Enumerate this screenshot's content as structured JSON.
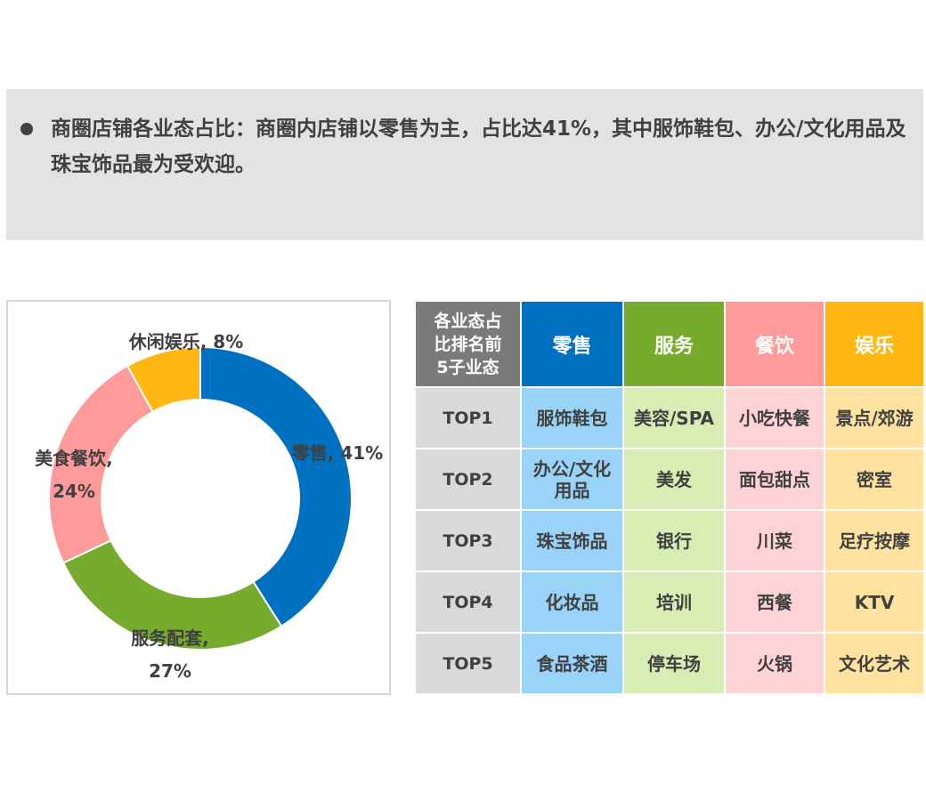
{
  "note": {
    "text": "商圈店铺各业态占比：商圈内店铺以零售为主，占比达41%，其中服饰鞋包、办公/文化用品及珠宝饰品最为受欢迎。"
  },
  "chart_data": {
    "type": "pie",
    "donut": true,
    "categories": [
      "零售",
      "服务配套",
      "美食餐饮",
      "休闲娱乐"
    ],
    "values": [
      41,
      27,
      24,
      8
    ],
    "colors": [
      "#0070c0",
      "#77ab2e",
      "#ff9a9a",
      "#ffb812"
    ],
    "label_lines": [
      [
        "零售, 41%"
      ],
      [
        "服务配套,",
        "27%"
      ],
      [
        "美食餐饮,",
        "24%"
      ],
      [
        "休闲娱乐, 8%"
      ]
    ],
    "start": "12 o'clock",
    "direction": "clockwise"
  },
  "table": {
    "corner_label": "各业态占比排名前5子业态",
    "columns": [
      {
        "name": "零售",
        "header_color": "#0070c0",
        "cell_color": "#99d3f7"
      },
      {
        "name": "服务",
        "header_color": "#77ab2e",
        "cell_color": "#d8edb3"
      },
      {
        "name": "餐饮",
        "header_color": "#ff9a9a",
        "cell_color": "#ffd3d6"
      },
      {
        "name": "娱乐",
        "header_color": "#ffb812",
        "cell_color": "#ffe1a0"
      }
    ],
    "rows": [
      {
        "rank": "TOP1",
        "cells": [
          "服饰鞋包",
          "美容/SPA",
          "小吃快餐",
          "景点/郊游"
        ]
      },
      {
        "rank": "TOP2",
        "cells": [
          "办公/文化用品",
          "美发",
          "面包甜点",
          "密室"
        ]
      },
      {
        "rank": "TOP3",
        "cells": [
          "珠宝饰品",
          "银行",
          "川菜",
          "足疗按摩"
        ]
      },
      {
        "rank": "TOP4",
        "cells": [
          "化妆品",
          "培训",
          "西餐",
          "KTV"
        ]
      },
      {
        "rank": "TOP5",
        "cells": [
          "食品茶酒",
          "停车场",
          "火锅",
          "文化艺术"
        ]
      }
    ]
  }
}
